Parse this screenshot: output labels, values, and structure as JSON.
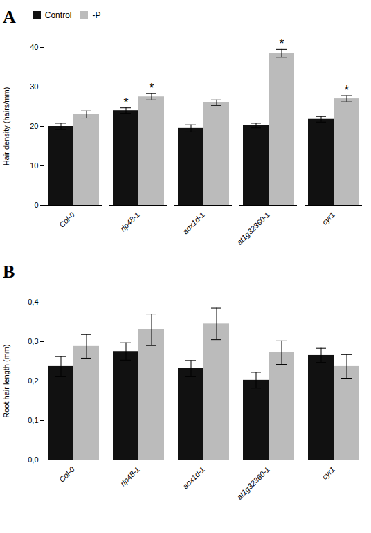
{
  "chart_data": [
    {
      "type": "bar",
      "title": "A",
      "categories": [
        "Col-0",
        "rlp48-1",
        "aox1d-1",
        "at1g32360-1",
        "cyr1"
      ],
      "series": [
        {
          "name": "Control",
          "color": "#111111",
          "values": [
            20.0,
            24.0,
            19.5,
            20.2,
            21.8
          ],
          "errors": [
            0.8,
            0.7,
            0.9,
            0.6,
            0.7
          ]
        },
        {
          "name": "-P",
          "color": "#bbbbbb",
          "values": [
            23.0,
            27.5,
            26.0,
            38.5,
            27.0
          ],
          "errors": [
            0.9,
            0.8,
            0.7,
            1.0,
            0.8
          ]
        }
      ],
      "ylabel": "Hair density (hairs/mm)",
      "ylim": [
        0,
        40
      ],
      "yticks": [
        0,
        10,
        20,
        30,
        40
      ],
      "annotations": [
        {
          "category": "rlp48-1",
          "series": "-P",
          "text": "*"
        },
        {
          "category": "at1g32360-1",
          "series": "-P",
          "text": "*"
        },
        {
          "category": "cyr1",
          "series": "-P",
          "text": "*"
        },
        {
          "category": "rlp48-1",
          "series": "Control",
          "text": "*"
        }
      ],
      "legend": "upper left",
      "grid": false
    },
    {
      "type": "bar",
      "title": "B",
      "categories": [
        "Col-0",
        "rlp48-1",
        "aox1d-1",
        "at1g32360-1",
        "cyr1"
      ],
      "series": [
        {
          "name": "Control",
          "color": "#111111",
          "values": [
            0.237,
            0.275,
            0.232,
            0.202,
            0.265
          ],
          "errors": [
            0.025,
            0.022,
            0.02,
            0.02,
            0.018
          ]
        },
        {
          "name": "-P",
          "color": "#bbbbbb",
          "values": [
            0.288,
            0.33,
            0.345,
            0.272,
            0.237
          ],
          "errors": [
            0.03,
            0.04,
            0.04,
            0.03,
            0.03
          ]
        }
      ],
      "ylabel": "Root hair length (mm)",
      "ylim": [
        0,
        0.4
      ],
      "yticks": [
        {
          "value": 0,
          "label": "0,0"
        },
        {
          "value": 0.1,
          "label": "0,1"
        },
        {
          "value": 0.2,
          "label": "0,2"
        },
        {
          "value": 0.3,
          "label": "0,3"
        },
        {
          "value": 0.4,
          "label": "0,4"
        }
      ],
      "grid": false
    }
  ]
}
